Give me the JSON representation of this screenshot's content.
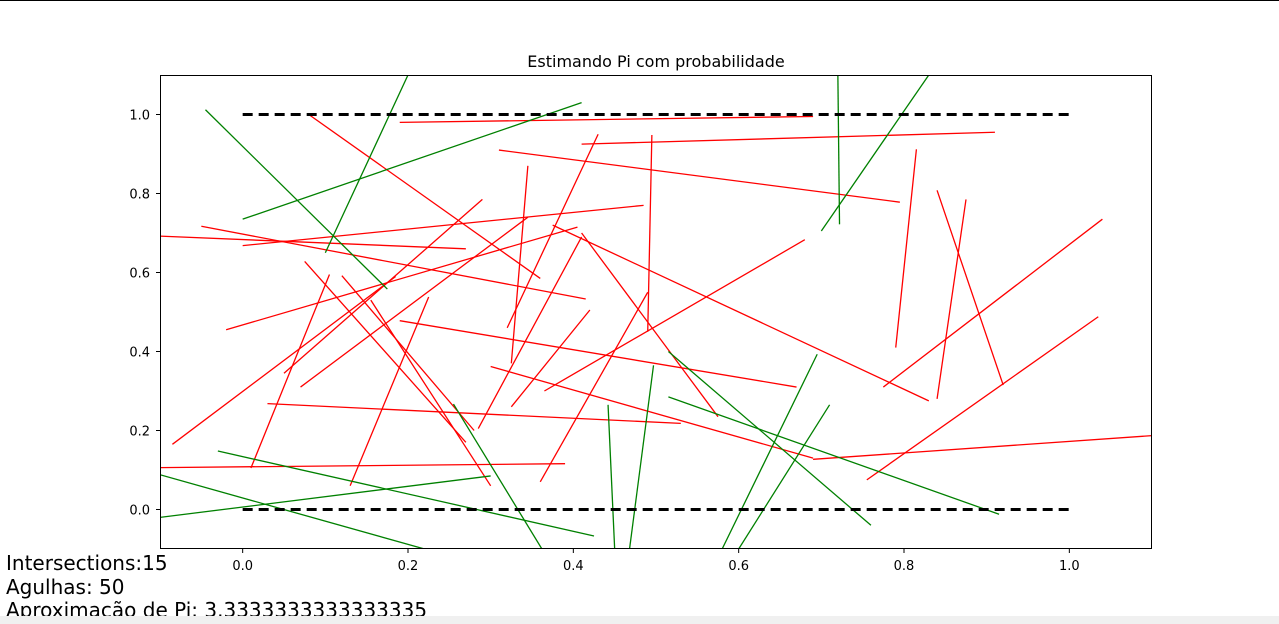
{
  "chart_data": {
    "type": "line",
    "title": "Estimando Pi com probabilidade",
    "xlabel": "",
    "ylabel": "",
    "xlim": [
      -0.1,
      1.1
    ],
    "ylim": [
      -0.1,
      1.1
    ],
    "x_ticks": [
      "0.0",
      "0.2",
      "0.4",
      "0.6",
      "0.8",
      "1.0"
    ],
    "y_ticks": [
      "0.0",
      "0.2",
      "0.4",
      "0.6",
      "0.8",
      "1.0"
    ],
    "grid": false,
    "legend": "none",
    "reference_lines": [
      {
        "y": 0.0,
        "x_start": 0.0,
        "x_end": 1.0,
        "style": "dashed",
        "color": "#000000"
      },
      {
        "y": 1.0,
        "x_start": 0.0,
        "x_end": 1.0,
        "style": "dashed",
        "color": "#000000"
      }
    ],
    "colors": {
      "intersecting": "#008000",
      "non_intersecting": "#ff0000"
    },
    "needles": [
      {
        "x1": 0.08,
        "y1": 1.0,
        "x2": 0.36,
        "y2": 0.585,
        "hit": false
      },
      {
        "x1": 0.19,
        "y1": 0.98,
        "x2": 0.69,
        "y2": 0.995,
        "hit": false
      },
      {
        "x1": 0.41,
        "y1": 0.925,
        "x2": 0.91,
        "y2": 0.955,
        "hit": false
      },
      {
        "x1": 0.31,
        "y1": 0.91,
        "x2": 0.795,
        "y2": 0.778,
        "hit": false
      },
      {
        "x1": -0.1,
        "y1": 0.692,
        "x2": 0.27,
        "y2": 0.66,
        "hit": false
      },
      {
        "x1": 0.0,
        "y1": 0.668,
        "x2": 0.485,
        "y2": 0.77,
        "hit": false
      },
      {
        "x1": -0.05,
        "y1": 0.717,
        "x2": 0.415,
        "y2": 0.533,
        "hit": false
      },
      {
        "x1": -0.02,
        "y1": 0.455,
        "x2": 0.405,
        "y2": 0.715,
        "hit": false
      },
      {
        "x1": 0.345,
        "y1": 0.87,
        "x2": 0.325,
        "y2": 0.37,
        "hit": false
      },
      {
        "x1": 0.32,
        "y1": 0.46,
        "x2": 0.43,
        "y2": 0.95,
        "hit": false
      },
      {
        "x1": 0.495,
        "y1": 0.948,
        "x2": 0.49,
        "y2": 0.45,
        "hit": false
      },
      {
        "x1": 0.79,
        "y1": 0.41,
        "x2": 0.815,
        "y2": 0.912,
        "hit": false
      },
      {
        "x1": 0.84,
        "y1": 0.808,
        "x2": 0.92,
        "y2": 0.315,
        "hit": false
      },
      {
        "x1": 0.875,
        "y1": 0.785,
        "x2": 0.84,
        "y2": 0.28,
        "hit": false
      },
      {
        "x1": 0.775,
        "y1": 0.31,
        "x2": 1.04,
        "y2": 0.735,
        "hit": false
      },
      {
        "x1": 0.755,
        "y1": 0.075,
        "x2": 1.035,
        "y2": 0.488,
        "hit": false
      },
      {
        "x1": 0.365,
        "y1": 0.3,
        "x2": 0.68,
        "y2": 0.683,
        "hit": false
      },
      {
        "x1": 0.375,
        "y1": 0.72,
        "x2": 0.83,
        "y2": 0.275,
        "hit": false
      },
      {
        "x1": 0.325,
        "y1": 0.26,
        "x2": 0.42,
        "y2": 0.505,
        "hit": false
      },
      {
        "x1": 0.19,
        "y1": 0.478,
        "x2": 0.67,
        "y2": 0.31,
        "hit": false
      },
      {
        "x1": 0.07,
        "y1": 0.31,
        "x2": 0.345,
        "y2": 0.74,
        "hit": false
      },
      {
        "x1": 0.05,
        "y1": 0.345,
        "x2": 0.29,
        "y2": 0.785,
        "hit": false
      },
      {
        "x1": -0.085,
        "y1": 0.165,
        "x2": 0.185,
        "y2": 0.59,
        "hit": false
      },
      {
        "x1": 0.01,
        "y1": 0.105,
        "x2": 0.105,
        "y2": 0.595,
        "hit": false
      },
      {
        "x1": 0.075,
        "y1": 0.628,
        "x2": 0.27,
        "y2": 0.17,
        "hit": false
      },
      {
        "x1": 0.12,
        "y1": 0.592,
        "x2": 0.28,
        "y2": 0.2,
        "hit": false
      },
      {
        "x1": 0.155,
        "y1": 0.53,
        "x2": 0.3,
        "y2": 0.06,
        "hit": false
      },
      {
        "x1": 0.13,
        "y1": 0.06,
        "x2": 0.225,
        "y2": 0.538,
        "hit": false
      },
      {
        "x1": 0.03,
        "y1": 0.268,
        "x2": 0.53,
        "y2": 0.218,
        "hit": false
      },
      {
        "x1": -0.1,
        "y1": 0.106,
        "x2": 0.39,
        "y2": 0.116,
        "hit": false
      },
      {
        "x1": 0.3,
        "y1": 0.362,
        "x2": 0.69,
        "y2": 0.13,
        "hit": false
      },
      {
        "x1": 0.69,
        "y1": 0.127,
        "x2": 1.1,
        "y2": 0.187,
        "hit": false
      },
      {
        "x1": 0.36,
        "y1": 0.07,
        "x2": 0.49,
        "y2": 0.55,
        "hit": false
      },
      {
        "x1": 0.285,
        "y1": 0.205,
        "x2": 0.41,
        "y2": 0.69,
        "hit": false
      },
      {
        "x1": 0.41,
        "y1": 0.7,
        "x2": 0.575,
        "y2": 0.235,
        "hit": false
      },
      {
        "x1": -0.045,
        "y1": 1.012,
        "x2": 0.175,
        "y2": 0.558,
        "hit": true
      },
      {
        "x1": 0.0,
        "y1": 0.735,
        "x2": 0.41,
        "y2": 1.03,
        "hit": true
      },
      {
        "x1": 0.1,
        "y1": 0.65,
        "x2": 0.2,
        "y2": 1.1,
        "hit": true
      },
      {
        "x1": 0.722,
        "y1": 0.722,
        "x2": 0.72,
        "y2": 1.1,
        "hit": true
      },
      {
        "x1": 0.7,
        "y1": 0.705,
        "x2": 0.83,
        "y2": 1.1,
        "hit": true
      },
      {
        "x1": 0.255,
        "y1": 0.267,
        "x2": 0.362,
        "y2": -0.1,
        "hit": true
      },
      {
        "x1": 0.442,
        "y1": 0.265,
        "x2": 0.45,
        "y2": -0.1,
        "hit": true
      },
      {
        "x1": 0.468,
        "y1": -0.1,
        "x2": 0.497,
        "y2": 0.365,
        "hit": true
      },
      {
        "x1": 0.515,
        "y1": 0.4,
        "x2": 0.76,
        "y2": -0.04,
        "hit": true
      },
      {
        "x1": 0.515,
        "y1": 0.285,
        "x2": 0.915,
        "y2": -0.012,
        "hit": true
      },
      {
        "x1": 0.58,
        "y1": -0.1,
        "x2": 0.695,
        "y2": 0.393,
        "hit": true
      },
      {
        "x1": 0.6,
        "y1": -0.1,
        "x2": 0.71,
        "y2": 0.265,
        "hit": true
      },
      {
        "x1": -0.1,
        "y1": 0.088,
        "x2": 0.22,
        "y2": -0.1,
        "hit": true
      },
      {
        "x1": -0.1,
        "y1": -0.02,
        "x2": 0.3,
        "y2": 0.085,
        "hit": true
      },
      {
        "x1": -0.03,
        "y1": 0.148,
        "x2": 0.425,
        "y2": -0.067,
        "hit": true
      }
    ]
  },
  "stats": {
    "intersections": "Intersections:15",
    "agulhas": "Agulhas: 50",
    "pi_estimate": "Aproximação de Pi: 3.3333333333333335"
  }
}
